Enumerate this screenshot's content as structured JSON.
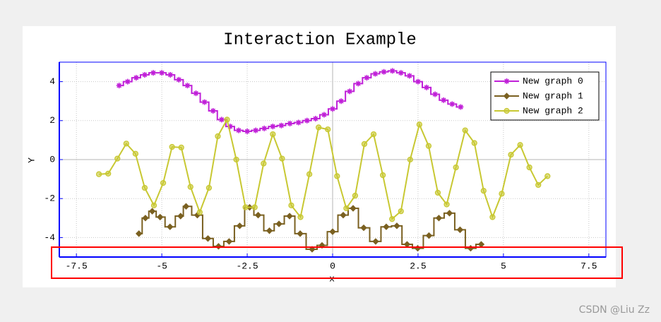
{
  "chart_data": {
    "type": "line",
    "title": "Interaction Example",
    "xlabel": "x",
    "ylabel": "Y",
    "xlim": [
      -8,
      8
    ],
    "ylim": [
      -5,
      5
    ],
    "xticks": [
      -7.5,
      -5,
      -2.5,
      0,
      2.5,
      5,
      7.5
    ],
    "yticks": [
      -4,
      -2,
      0,
      2,
      4
    ],
    "grid": true,
    "legend": "top-right",
    "series": [
      {
        "name": "New graph 0",
        "color": "#c020d8",
        "marker": "star",
        "step": true,
        "x": [
          -6.25,
          -6,
          -5.75,
          -5.5,
          -5.25,
          -5,
          -4.75,
          -4.5,
          -4.25,
          -4,
          -3.75,
          -3.5,
          -3.25,
          -3,
          -2.75,
          -2.5,
          -2.25,
          -2,
          -1.75,
          -1.5,
          -1.25,
          -1,
          -0.75,
          -0.5,
          -0.25,
          0,
          0.25,
          0.5,
          0.75,
          1,
          1.25,
          1.5,
          1.75,
          2,
          2.25,
          2.5,
          2.75,
          3,
          3.25,
          3.5,
          3.75
        ],
        "values": [
          3.8,
          4.0,
          4.2,
          4.35,
          4.45,
          4.45,
          4.35,
          4.1,
          3.8,
          3.4,
          2.95,
          2.5,
          2.05,
          1.7,
          1.5,
          1.45,
          1.5,
          1.6,
          1.7,
          1.75,
          1.85,
          1.9,
          2.0,
          2.1,
          2.3,
          2.6,
          3.0,
          3.5,
          3.9,
          4.2,
          4.4,
          4.5,
          4.55,
          4.45,
          4.3,
          4.0,
          3.7,
          3.35,
          3.05,
          2.85,
          2.7
        ]
      },
      {
        "name": "New graph 1",
        "color": "#7a6020",
        "marker": "diamond",
        "step": true,
        "x": [
          -5.67,
          -5.48,
          -5.28,
          -5.05,
          -4.76,
          -4.45,
          -4.29,
          -3.96,
          -3.65,
          -3.34,
          -3.03,
          -2.72,
          -2.43,
          -2.18,
          -1.85,
          -1.57,
          -1.26,
          -0.95,
          -0.6,
          -0.31,
          0,
          0.31,
          0.6,
          0.91,
          1.26,
          1.57,
          1.88,
          2.18,
          2.49,
          2.82,
          3.11,
          3.42,
          3.73,
          4.04,
          4.35
        ],
        "values": [
          -3.8,
          -3.0,
          -2.65,
          -2.95,
          -3.45,
          -2.9,
          -2.4,
          -2.85,
          -4.05,
          -4.45,
          -4.2,
          -3.4,
          -2.45,
          -2.85,
          -3.65,
          -3.3,
          -2.9,
          -3.8,
          -4.6,
          -4.4,
          -3.7,
          -2.85,
          -2.5,
          -3.5,
          -4.2,
          -3.45,
          -3.4,
          -4.35,
          -4.55,
          -3.9,
          -3.0,
          -2.75,
          -3.6,
          -4.55,
          -4.35
        ]
      },
      {
        "name": "New graph 2",
        "color": "#c8c832",
        "marker": "circle",
        "step": false,
        "x": [
          -6.84,
          -6.57,
          -6.3,
          -6.04,
          -5.77,
          -5.5,
          -5.23,
          -4.96,
          -4.7,
          -4.43,
          -4.16,
          -3.89,
          -3.62,
          -3.36,
          -3.09,
          -2.82,
          -2.55,
          -2.28,
          -2.02,
          -1.75,
          -1.48,
          -1.21,
          -0.94,
          -0.68,
          -0.41,
          -0.14,
          0.13,
          0.4,
          0.66,
          0.93,
          1.2,
          1.47,
          1.74,
          2.0,
          2.27,
          2.54,
          2.81,
          3.08,
          3.34,
          3.61,
          3.88,
          4.15,
          4.42,
          4.68,
          4.95,
          5.22,
          5.49,
          5.76,
          6.02,
          6.29
        ],
        "values": [
          -0.75,
          -0.72,
          0.05,
          0.82,
          0.3,
          -1.45,
          -2.35,
          -1.2,
          0.65,
          0.62,
          -1.4,
          -2.7,
          -1.45,
          1.2,
          2.05,
          0.0,
          -2.45,
          -2.45,
          -0.2,
          1.3,
          0.05,
          -2.35,
          -2.95,
          -0.75,
          1.65,
          1.55,
          -0.85,
          -2.5,
          -1.85,
          0.8,
          1.3,
          -0.8,
          -3.05,
          -2.65,
          0.0,
          1.8,
          0.7,
          -1.7,
          -2.3,
          -0.4,
          1.5,
          0.85,
          -1.6,
          -2.95,
          -1.75,
          0.25,
          0.75,
          -0.4,
          -1.3,
          -0.85
        ]
      }
    ]
  },
  "watermark": "CSDN @Liu Zz"
}
